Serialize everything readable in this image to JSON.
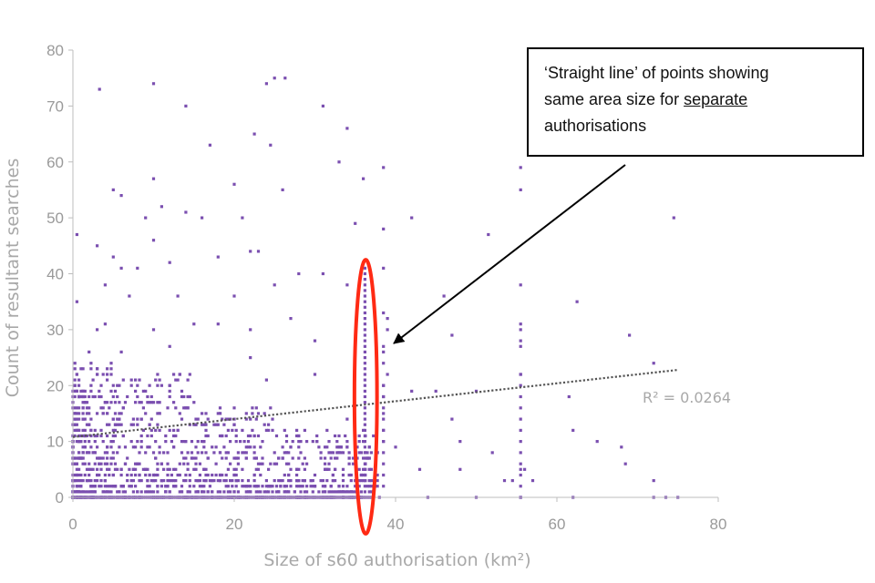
{
  "chart_data": {
    "type": "scatter",
    "xlabel": "Size of s60 authorisation (km²)",
    "ylabel": "Count of resultant searches",
    "xlim": [
      0,
      80
    ],
    "ylim": [
      0,
      80
    ],
    "x_ticks": [
      0,
      20,
      40,
      60,
      80
    ],
    "y_ticks": [
      0,
      10,
      20,
      30,
      40,
      50,
      60,
      70,
      80
    ],
    "grid": false,
    "marker_color": "#7b4fb0",
    "trendline": {
      "style": "dotted",
      "color": "#555555",
      "x": [
        0,
        75
      ],
      "y": [
        10.8,
        22.8
      ],
      "r2_label": "R² = 0.0264"
    },
    "highlight_ellipse": {
      "color": "#ff2a14",
      "x_center": 36.3,
      "y_center": 18,
      "x_radius": 1.4,
      "y_radius": 24.5
    },
    "points": [
      [
        3.3,
        73
      ],
      [
        10,
        74
      ],
      [
        14,
        70
      ],
      [
        22.5,
        65
      ],
      [
        24,
        74
      ],
      [
        25,
        75
      ],
      [
        26.3,
        75
      ],
      [
        31,
        70
      ],
      [
        34,
        66
      ],
      [
        17,
        63
      ],
      [
        24.5,
        63
      ],
      [
        33,
        60
      ],
      [
        38.5,
        59
      ],
      [
        55.5,
        59
      ],
      [
        36,
        57
      ],
      [
        10,
        57
      ],
      [
        5,
        55
      ],
      [
        26,
        55
      ],
      [
        55.5,
        55
      ],
      [
        6,
        54
      ],
      [
        20,
        56
      ],
      [
        11,
        52
      ],
      [
        14,
        51
      ],
      [
        21,
        50
      ],
      [
        9,
        50
      ],
      [
        35,
        49
      ],
      [
        38.5,
        48
      ],
      [
        42,
        50
      ],
      [
        51.5,
        47
      ],
      [
        74.5,
        50
      ],
      [
        16,
        50
      ],
      [
        3,
        45
      ],
      [
        0.5,
        47
      ],
      [
        10,
        46
      ],
      [
        12,
        42
      ],
      [
        18,
        43
      ],
      [
        5,
        43
      ],
      [
        22,
        44
      ],
      [
        23,
        44
      ],
      [
        36,
        42
      ],
      [
        38.5,
        41
      ],
      [
        6,
        41
      ],
      [
        8,
        41
      ],
      [
        4,
        38
      ],
      [
        25,
        38
      ],
      [
        28,
        40
      ],
      [
        31,
        40
      ],
      [
        34,
        38
      ],
      [
        38.5,
        33
      ],
      [
        39,
        32
      ],
      [
        46,
        36
      ],
      [
        55.5,
        38
      ],
      [
        62.5,
        35
      ],
      [
        0.5,
        35
      ],
      [
        7,
        36
      ],
      [
        13,
        36
      ],
      [
        20,
        36
      ],
      [
        3,
        30
      ],
      [
        4,
        31
      ],
      [
        10,
        30
      ],
      [
        15,
        31
      ],
      [
        18,
        31
      ],
      [
        22,
        30
      ],
      [
        27,
        32
      ],
      [
        30,
        28
      ],
      [
        39,
        30
      ],
      [
        47,
        29
      ],
      [
        55.5,
        31
      ],
      [
        55.5,
        30
      ],
      [
        69,
        29
      ],
      [
        38.5,
        27
      ],
      [
        55.5,
        28
      ],
      [
        55.5,
        27
      ],
      [
        38.5,
        26
      ],
      [
        2,
        26
      ],
      [
        6,
        26
      ],
      [
        12,
        27
      ],
      [
        22,
        25
      ],
      [
        24,
        21
      ],
      [
        30,
        22
      ],
      [
        38.5,
        24
      ],
      [
        39,
        22
      ],
      [
        55.5,
        22
      ],
      [
        72,
        24
      ],
      [
        61.5,
        18
      ],
      [
        42,
        19
      ],
      [
        45,
        19
      ],
      [
        50,
        19
      ],
      [
        34,
        14
      ],
      [
        38.5,
        12
      ],
      [
        47,
        14
      ],
      [
        62,
        12
      ],
      [
        65,
        10
      ],
      [
        68,
        9
      ],
      [
        68.5,
        6
      ],
      [
        72,
        3
      ],
      [
        73.5,
        0
      ],
      [
        75,
        0
      ],
      [
        50,
        0
      ],
      [
        55.5,
        0
      ],
      [
        53.5,
        3
      ],
      [
        54.5,
        3
      ],
      [
        55.5,
        5
      ],
      [
        56,
        5
      ],
      [
        43,
        5
      ],
      [
        48,
        5
      ],
      [
        44,
        0
      ],
      [
        34,
        2
      ],
      [
        38.5,
        10
      ],
      [
        40,
        9
      ],
      [
        38.5,
        18
      ],
      [
        38.5,
        20
      ],
      [
        38.5,
        15
      ],
      [
        52,
        8
      ],
      [
        48,
        10
      ],
      [
        57,
        3
      ],
      [
        62,
        0
      ],
      [
        72,
        0
      ]
    ]
  },
  "callout": {
    "line1": "‘Straight line’ of points showing",
    "line2a": "same area size for ",
    "line2b": "separate",
    "line3": "authorisations"
  }
}
